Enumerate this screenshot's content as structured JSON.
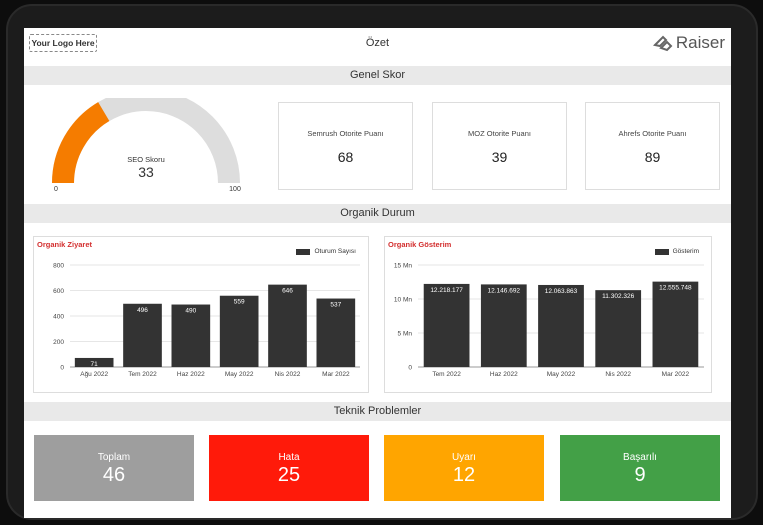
{
  "header": {
    "logo_text": "Your Logo Here",
    "title": "Özet",
    "brand": "Raiser"
  },
  "sections": {
    "genel": "Genel Skor",
    "organik": "Organik Durum",
    "teknik": "Teknik Problemler"
  },
  "gauge": {
    "label": "SEO Skoru",
    "value": 33,
    "min": "0",
    "max": "100",
    "color": "#f57c00",
    "track": "#dddddd"
  },
  "kpis": [
    {
      "label": "Semrush Otorite Puanı",
      "value": "68"
    },
    {
      "label": "MOZ Otorite Puanı",
      "value": "39"
    },
    {
      "label": "Ahrefs Otorite Puanı",
      "value": "89"
    }
  ],
  "chart_data": [
    {
      "type": "bar",
      "title": "Organik Ziyaret",
      "legend": "Oturum Sayısı",
      "categories": [
        "Ağu 2022",
        "Tem 2022",
        "Haz 2022",
        "May 2022",
        "Nis 2022",
        "Mar 2022"
      ],
      "values": [
        71,
        496,
        490,
        559,
        646,
        537
      ],
      "labels": [
        "71",
        "496",
        "490",
        "559",
        "646",
        "537"
      ],
      "yticks": [
        "0",
        "200",
        "400",
        "600",
        "800"
      ],
      "ylim": [
        0,
        800
      ],
      "color": "#333333"
    },
    {
      "type": "bar",
      "title": "Organik Gösterim",
      "legend": "Gösterim",
      "categories": [
        "Tem 2022",
        "Haz 2022",
        "May 2022",
        "Nis 2022",
        "Mar 2022"
      ],
      "values": [
        12218177,
        12146692,
        12063863,
        11302326,
        12555748
      ],
      "labels": [
        "12.218.177",
        "12.146.692",
        "12.063.863",
        "11.302.326",
        "12.555.748"
      ],
      "yticks": [
        "0",
        "5 Mn",
        "10 Mn",
        "15 Mn"
      ],
      "ylim": [
        0,
        15000000
      ],
      "color": "#333333"
    }
  ],
  "tiles": [
    {
      "label": "Toplam",
      "value": "46",
      "color": "#9e9e9e"
    },
    {
      "label": "Hata",
      "value": "25",
      "color": "#ff1a0a"
    },
    {
      "label": "Uyarı",
      "value": "12",
      "color": "#ffa500"
    },
    {
      "label": "Başarılı",
      "value": "9",
      "color": "#43a047"
    }
  ]
}
